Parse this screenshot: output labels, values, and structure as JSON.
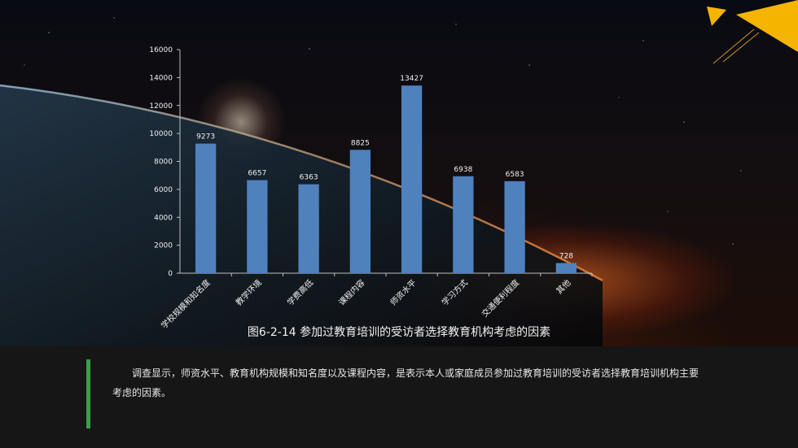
{
  "caption": "图6-2-14 参加过教育培训的受访者选择教育机构考虑的因素",
  "description": "调查显示，师资水平、教育机构规模和知名度以及课程内容，是表示本人或家庭成员参加过教育培训的受访者选择教育培训机构主要考虑的因素。",
  "colors": {
    "bar": "#4f81bd",
    "accent_bar": "#35a148",
    "corner_triangles": "#f5b400",
    "bottom_panel": "#161616"
  },
  "chart_data": {
    "type": "bar",
    "categories": [
      "学校规模和知名度",
      "教学环境",
      "学费高低",
      "课程内容",
      "师资水平",
      "学习方式",
      "交通便利程度",
      "其他"
    ],
    "values": [
      9273,
      6657,
      6363,
      8825,
      13427,
      6938,
      6583,
      728
    ],
    "data_labels": [
      "9273",
      "6657",
      "6363",
      "8825",
      "13427",
      "6938",
      "6583",
      "728"
    ],
    "yticks": [
      "0",
      "2000",
      "4000",
      "6000",
      "8000",
      "10000",
      "12000",
      "14000",
      "16000"
    ],
    "ylim": [
      0,
      16000
    ],
    "grid": false,
    "legend": "none"
  }
}
